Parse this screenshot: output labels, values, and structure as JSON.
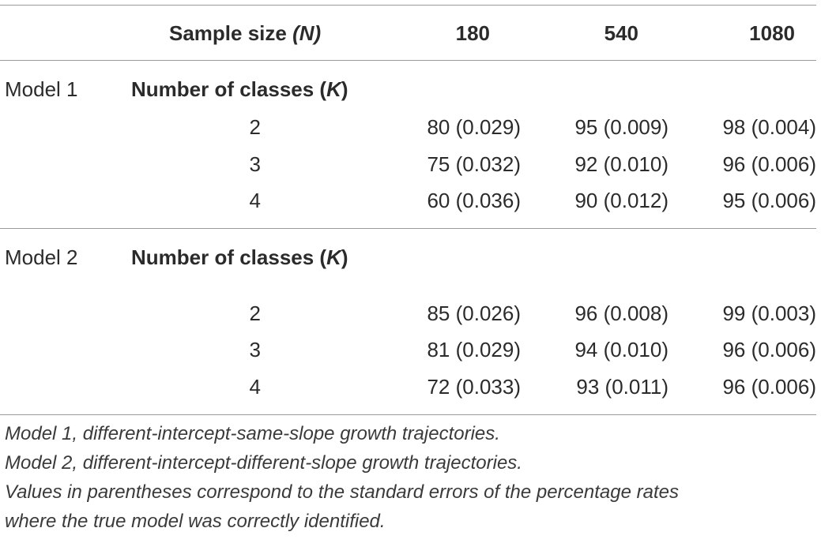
{
  "header": {
    "sample_size_label": "Sample size ",
    "sample_size_symbol": "(N)",
    "columns": [
      "180",
      "540",
      "1080"
    ]
  },
  "model1": {
    "label": "Model 1",
    "classes_label": "Number of classes (",
    "classes_symbol": "K",
    "classes_close": ")",
    "rows": [
      {
        "k": "2",
        "v180": "80 (0.029)",
        "v540": "95 (0.009)",
        "v1080": "98 (0.004)"
      },
      {
        "k": "3",
        "v180": "75 (0.032)",
        "v540": "92 (0.010)",
        "v1080": "96 (0.006)"
      },
      {
        "k": "4",
        "v180": "60 (0.036)",
        "v540": "90 (0.012)",
        "v1080": "95 (0.006)"
      }
    ]
  },
  "model2": {
    "label": "Model 2",
    "classes_label": "Number of classes (",
    "classes_symbol": "K",
    "classes_close": ")",
    "rows": [
      {
        "k": "2",
        "v180": "85 (0.026)",
        "v540": "96 (0.008)",
        "v1080": "99 (0.003)"
      },
      {
        "k": "3",
        "v180": "81 (0.029)",
        "v540": "94 (0.010)",
        "v1080": "96 (0.006)"
      },
      {
        "k": "4",
        "v180": "72 (0.033)",
        "v540": "93 (0.011)",
        "v1080": "96 (0.006)"
      }
    ]
  },
  "notes": [
    "Model 1, different-intercept-same-slope growth trajectories.",
    "Model 2, different-intercept-different-slope growth trajectories.",
    "Values in parentheses correspond to the standard errors of the percentage rates",
    "where the true model was correctly identified."
  ]
}
